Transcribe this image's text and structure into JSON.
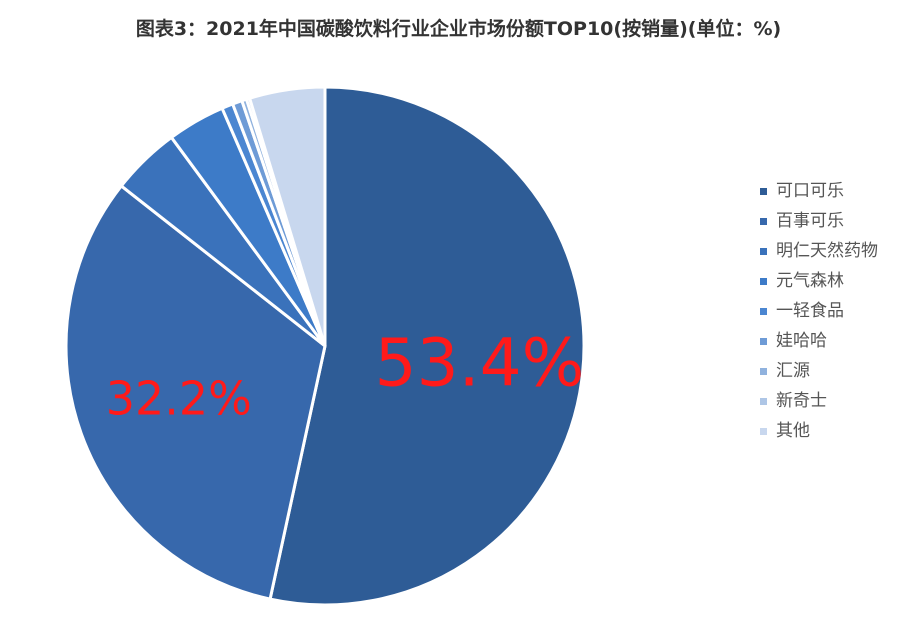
{
  "chart_data": {
    "type": "pie",
    "title": "图表3：2021年中国碳酸饮料行业企业市场份额TOP10(按销量)(单位：%)",
    "slices": [
      {
        "name": "可口可乐",
        "value": 53.4,
        "color": "#2e5c96",
        "label": "53.4%"
      },
      {
        "name": "百事可乐",
        "value": 32.2,
        "color": "#3768ac",
        "label": "32.2%"
      },
      {
        "name": "明仁天然药物",
        "value": 4.3,
        "color": "#3a72bb",
        "label": ""
      },
      {
        "name": "元气森林",
        "value": 3.6,
        "color": "#3d7bc8",
        "label": ""
      },
      {
        "name": "一轻食品",
        "value": 0.7,
        "color": "#4b86d1",
        "label": ""
      },
      {
        "name": "娃哈哈",
        "value": 0.6,
        "color": "#6e9bd6",
        "label": ""
      },
      {
        "name": "汇源",
        "value": 0.3,
        "color": "#90b2de",
        "label": ""
      },
      {
        "name": "新奇士",
        "value": 0.2,
        "color": "#aec6e6",
        "label": ""
      },
      {
        "name": "其他",
        "value": 4.7,
        "color": "#c8d7ee",
        "label": ""
      }
    ],
    "legend_position": "right"
  }
}
